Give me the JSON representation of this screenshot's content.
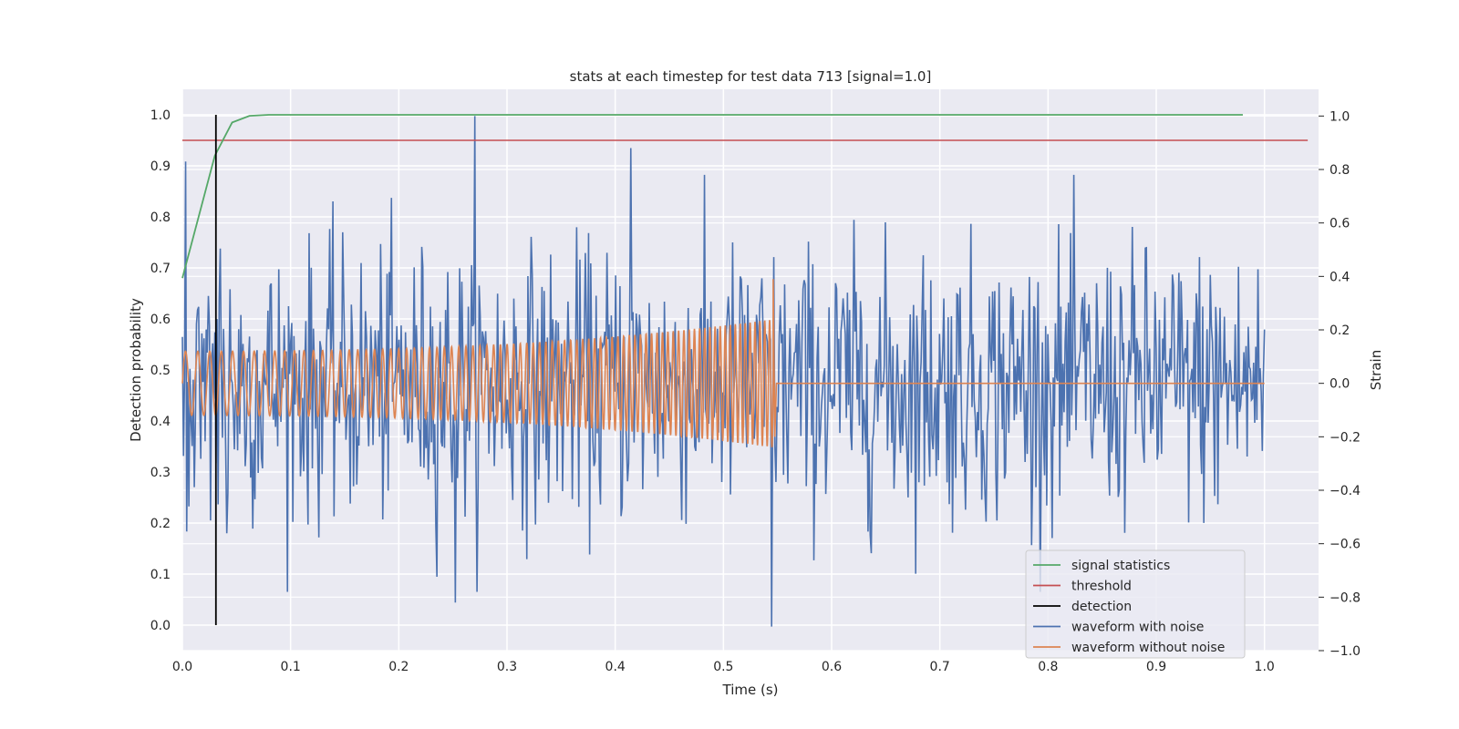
{
  "chart_data": {
    "type": "line",
    "title": "stats at each timestep for test data 713 [signal=1.0]",
    "xlabel": "Time (s)",
    "ylabel_left": "Detection probability",
    "ylabel_right": "Strain",
    "xlim": [
      0.0,
      1.05
    ],
    "ylim_left": [
      -0.05,
      1.05
    ],
    "ylim_right": [
      -1.0,
      1.1
    ],
    "x_ticks": [
      "0.0",
      "0.1",
      "0.2",
      "0.3",
      "0.4",
      "0.5",
      "0.6",
      "0.7",
      "0.8",
      "0.9",
      "1.0"
    ],
    "y_left_ticks": [
      "0.0",
      "0.1",
      "0.2",
      "0.3",
      "0.4",
      "0.5",
      "0.6",
      "0.7",
      "0.8",
      "0.9",
      "1.0"
    ],
    "y_right_ticks": [
      "−1.0",
      "−0.8",
      "−0.6",
      "−0.4",
      "−0.2",
      "0.0",
      "0.2",
      "0.4",
      "0.6",
      "0.8",
      "1.0"
    ],
    "grid": true,
    "legend_position": "bottom-right",
    "series": [
      {
        "name": "signal statistics",
        "axis": "left",
        "color": "#55a868",
        "x": [
          0.0,
          0.015,
          0.03,
          0.046,
          0.062,
          0.08,
          0.1,
          0.2,
          0.4,
          0.6,
          0.8,
          0.98
        ],
        "y": [
          0.68,
          0.8,
          0.92,
          0.985,
          0.998,
          1.0,
          1.0,
          1.0,
          1.0,
          1.0,
          1.0,
          1.0
        ]
      },
      {
        "name": "threshold",
        "axis": "left",
        "color": "#c44e52",
        "x": [
          0.0,
          1.04
        ],
        "y": [
          0.95,
          0.95
        ]
      },
      {
        "name": "detection",
        "axis": "left",
        "color": "#000000",
        "x": [
          0.031,
          0.031
        ],
        "y": [
          0.0,
          1.0
        ]
      },
      {
        "name": "waveform with noise",
        "axis": "right",
        "color": "#4c72b0",
        "x_range": [
          0.0,
          1.0
        ],
        "points": 1000,
        "noise_std": 0.25,
        "peaks": [
          {
            "x": 0.27,
            "y": 1.0
          },
          {
            "x": 0.414,
            "y": 0.88
          },
          {
            "x": 0.545,
            "y": -0.91
          },
          {
            "x": 0.252,
            "y": -0.82
          },
          {
            "x": 0.003,
            "y": 0.83
          }
        ]
      },
      {
        "name": "waveform without noise",
        "axis": "right",
        "color": "#dd8452",
        "x_range": [
          0.0,
          0.546
        ],
        "after_merger_value": 0.0,
        "end_x": 1.0,
        "amplitude_start": 0.12,
        "amplitude_end": 0.24,
        "final_spike": 0.39,
        "cycles": 85
      }
    ]
  }
}
